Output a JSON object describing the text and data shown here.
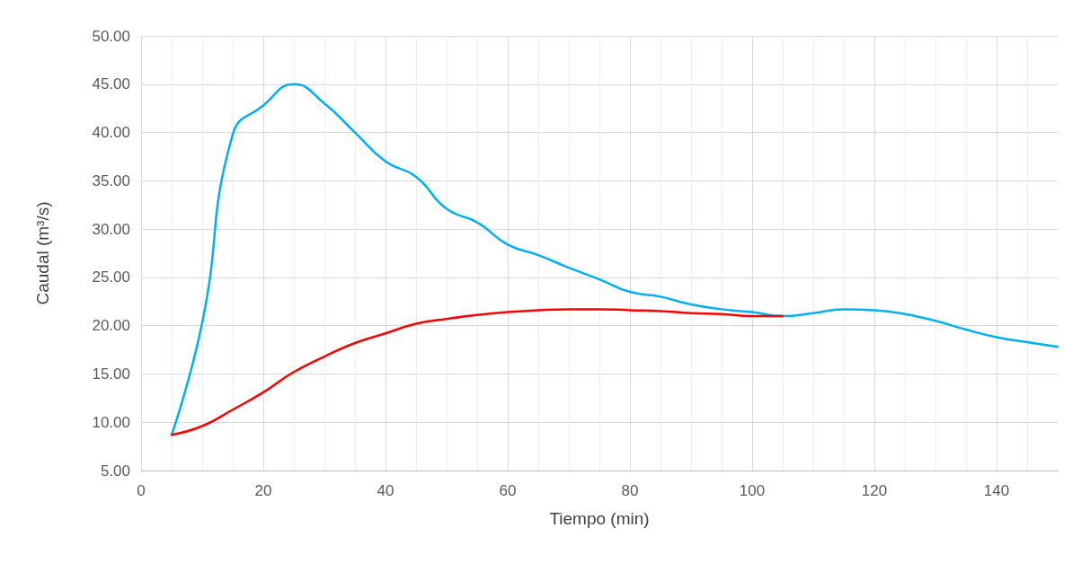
{
  "chart_data": {
    "type": "line",
    "xlabel": "Tiempo (min)",
    "ylabel": "Caudal (m³/s)",
    "x": [
      5,
      10,
      15,
      20,
      25,
      30,
      35,
      40,
      45,
      50,
      55,
      60,
      65,
      70,
      75,
      80,
      85,
      90,
      95,
      100,
      105,
      110,
      115,
      120,
      125,
      130,
      135,
      140,
      145,
      150
    ],
    "series": [
      {
        "color": "#00b0f0",
        "values": [
          8.7,
          20.3,
          39.8,
          42.8,
          45.0,
          43.0,
          40.0,
          37.0,
          35.4,
          32.1,
          30.7,
          28.4,
          27.3,
          26.0,
          24.8,
          23.5,
          23.0,
          22.2,
          21.7,
          21.4,
          21.0,
          21.3,
          21.7,
          21.6,
          21.2,
          20.5,
          19.6,
          18.8,
          18.3,
          17.8
        ]
      },
      {
        "color": "#ff0000",
        "values": [
          8.7,
          9.6,
          11.3,
          13.1,
          15.2,
          16.8,
          18.2,
          19.2,
          20.2,
          20.7,
          21.1,
          21.4,
          21.6,
          21.7,
          21.7,
          21.6,
          21.5,
          21.3,
          21.2,
          21.0,
          21.0,
          null,
          null,
          null,
          null,
          null,
          null,
          null,
          null,
          null
        ]
      }
    ],
    "xlim": [
      0,
      150
    ],
    "xticks": [
      0,
      20,
      40,
      60,
      80,
      100,
      120,
      140
    ],
    "ylim": [
      5,
      50
    ],
    "yticks": [
      {
        "value": 5,
        "label": "5.00"
      },
      {
        "value": 10,
        "label": "10.00"
      },
      {
        "value": 15,
        "label": "15.00"
      },
      {
        "value": 20,
        "label": "20.00"
      },
      {
        "value": 25,
        "label": "25.00"
      },
      {
        "value": 30,
        "label": "30.00"
      },
      {
        "value": 35,
        "label": "35.00"
      },
      {
        "value": 40,
        "label": "40.00"
      },
      {
        "value": 45,
        "label": "45.00"
      },
      {
        "value": 50,
        "label": "50.00"
      }
    ],
    "grid": true,
    "marker": "none",
    "line_style": "solid"
  }
}
